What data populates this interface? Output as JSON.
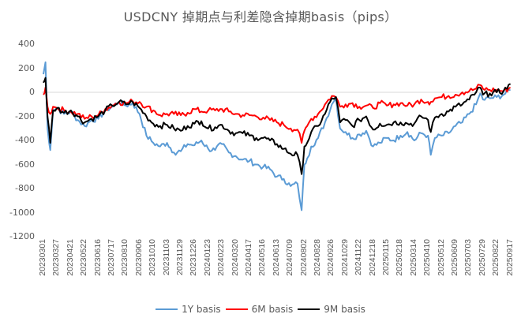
{
  "chart_data": {
    "type": "line",
    "title": "USDCNY 掉期点与利差隐含掉期basis（pips）",
    "xlabel": "",
    "ylabel": "",
    "ylim": [
      -1200,
      400
    ],
    "yticks": [
      400,
      200,
      0,
      -200,
      -400,
      -600,
      -800,
      -1000,
      -1200
    ],
    "grid": false,
    "zero_line": true,
    "legend_position": "bottom",
    "x_tick_labels": [
      "20230301",
      "20230327",
      "20230421",
      "20230522",
      "20230616",
      "20230717",
      "20230810",
      "20230906",
      "20231010",
      "20231103",
      "20231129",
      "20231226",
      "20240123",
      "20240223",
      "20240320",
      "20240417",
      "20240516",
      "20240613",
      "20240709",
      "20240802",
      "20240828",
      "20240926",
      "20241029",
      "20241122",
      "20241218",
      "20250115",
      "20250218",
      "20250314",
      "20250410",
      "20250512",
      "20250609",
      "20250703",
      "20250729",
      "20250822",
      "20250917"
    ],
    "x": [
      0,
      0.15,
      0.3,
      0.5,
      0.7,
      1,
      1.5,
      2,
      2.5,
      3,
      3.5,
      4,
      4.5,
      5,
      5.5,
      6,
      6.5,
      7,
      7.5,
      8,
      8.5,
      9,
      9.5,
      10,
      10.5,
      11,
      11.5,
      12,
      12.5,
      13,
      13.5,
      14,
      14.5,
      15,
      15.5,
      16,
      16.5,
      17,
      17.5,
      18,
      18.5,
      18.8,
      19,
      19.2,
      19.5,
      20,
      20.5,
      21,
      21.3,
      21.6,
      22,
      22.5,
      23,
      23.5,
      24,
      24.5,
      25,
      25.5,
      26,
      26.5,
      27,
      27.5,
      28,
      28.2,
      28.5,
      29,
      29.5,
      30,
      30.5,
      31,
      31.5,
      31.8,
      32,
      32.5,
      33,
      33.5,
      34
    ],
    "series": [
      {
        "name": "1Y basis",
        "color": "#5B9BD5",
        "values": [
          150,
          250,
          -300,
          -480,
          -150,
          -130,
          -180,
          -160,
          -230,
          -280,
          -230,
          -220,
          -150,
          -120,
          -80,
          -110,
          -90,
          -180,
          -360,
          -420,
          -450,
          -420,
          -500,
          -490,
          -430,
          -440,
          -400,
          -470,
          -480,
          -430,
          -500,
          -530,
          -560,
          -570,
          -600,
          -620,
          -640,
          -700,
          -720,
          -780,
          -760,
          -980,
          -600,
          -550,
          -450,
          -380,
          -250,
          -100,
          -50,
          -300,
          -330,
          -380,
          -350,
          -320,
          -450,
          -420,
          -380,
          -400,
          -360,
          -330,
          -400,
          -340,
          -360,
          -520,
          -380,
          -360,
          -340,
          -280,
          -250,
          -180,
          -100,
          -10,
          -60,
          -50,
          -40,
          -20,
          20
        ]
      },
      {
        "name": "6M basis",
        "color": "#FF0000",
        "values": [
          -20,
          40,
          -120,
          -180,
          -120,
          -130,
          -150,
          -160,
          -180,
          -220,
          -200,
          -190,
          -140,
          -110,
          -80,
          -90,
          -75,
          -80,
          -120,
          -150,
          -190,
          -180,
          -180,
          -190,
          -170,
          -140,
          -160,
          -150,
          -150,
          -140,
          -160,
          -180,
          -190,
          -190,
          -200,
          -210,
          -230,
          -250,
          -270,
          -300,
          -310,
          -420,
          -320,
          -280,
          -220,
          -180,
          -100,
          -30,
          -40,
          -120,
          -100,
          -90,
          -120,
          -110,
          -130,
          -90,
          -110,
          -100,
          -90,
          -110,
          -100,
          -60,
          -80,
          -80,
          -50,
          -40,
          -30,
          -20,
          0,
          10,
          30,
          60,
          30,
          20,
          20,
          10,
          40
        ]
      },
      {
        "name": "9M basis",
        "color": "#000000",
        "values": [
          80,
          120,
          -200,
          -420,
          -150,
          -130,
          -170,
          -150,
          -200,
          -250,
          -220,
          -200,
          -150,
          -110,
          -80,
          -100,
          -80,
          -130,
          -200,
          -260,
          -280,
          -270,
          -300,
          -320,
          -280,
          -260,
          -240,
          -300,
          -290,
          -270,
          -320,
          -340,
          -340,
          -360,
          -380,
          -380,
          -400,
          -430,
          -470,
          -510,
          -520,
          -680,
          -450,
          -420,
          -330,
          -280,
          -180,
          -50,
          -40,
          -250,
          -230,
          -280,
          -230,
          -200,
          -310,
          -260,
          -270,
          -250,
          -250,
          -260,
          -260,
          -200,
          -230,
          -330,
          -210,
          -180,
          -160,
          -120,
          -100,
          -60,
          0,
          40,
          -20,
          -10,
          0,
          10,
          70
        ]
      }
    ]
  },
  "legend": {
    "items": [
      {
        "label": "1Y basis",
        "color": "#5B9BD5"
      },
      {
        "label": "6M basis",
        "color": "#FF0000"
      },
      {
        "label": "9M basis",
        "color": "#000000"
      }
    ]
  }
}
